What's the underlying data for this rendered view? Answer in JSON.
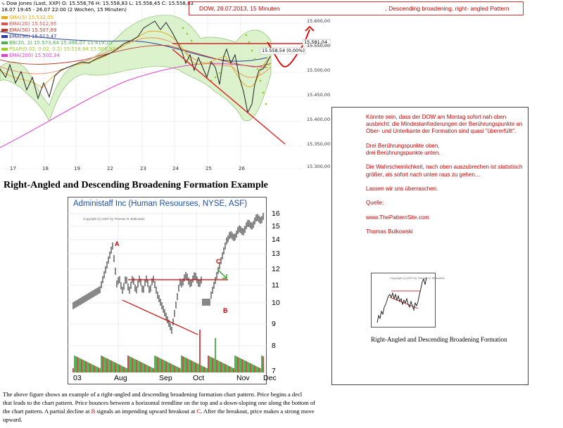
{
  "top_chart": {
    "header_line1": "Dow Jones (Last, XXP)  O: 15.556,76  H: 15.558,83  L: 15.556,45  C: 15.558,83",
    "header_line2": "18.07 19:45 - 26.07 22:00 (2 Wochen, 15 Minuten)",
    "legend": [
      {
        "label": "SMA(5)  15.532,05",
        "color": "#e6a817"
      },
      {
        "label": "EMA(20)  15.512,95",
        "color": "#d9534f"
      },
      {
        "label": "EMA(50)  15.507,69",
        "color": "#c0392b"
      },
      {
        "label": "EMA(90)  15.513,47",
        "color": "#2c3e99"
      },
      {
        "label": "BB(20, 2)  15.573,64  15.496,07  15.419,10",
        "color": "#4caf50"
      },
      {
        "label": "PSAR(0.02, 0.02, 0.2)  15.518,94  15.560,97",
        "color": "#9acd32"
      },
      {
        "label": "EMA(200)  15.502,34",
        "color": "#e040d0"
      }
    ],
    "y_ticks": [
      "15.600,00",
      "15.550,00",
      "15.500,00",
      "15.450,00",
      "15.400,00",
      "15.350,00",
      "15.300,00"
    ],
    "x_ticks": [
      "17",
      "18",
      "19",
      "22",
      "23",
      "24",
      "25",
      "26"
    ],
    "price_tag": "15.581,04",
    "change_tag": "15.558,54 (0,00%)",
    "title_date": "DOW,  28.07.2013,  15 Minuten",
    "title_pattern": ", Descending broadening, right- angled Pattern"
  },
  "section_heading": "Right-Angled and Descending Broadening Formation Example",
  "example_chart": {
    "title": "Administaff Inc (Human Resourses, NYSE, ASF)",
    "copyright": "Copyright (c) 2007 by Thomas N. Bulkowski",
    "y_ticks": [
      "16",
      "15",
      "14",
      "13",
      "12",
      "11",
      "10",
      "9",
      "8",
      "7"
    ],
    "x_ticks": [
      "03",
      "Aug",
      "Sep",
      "Oct",
      "Nov",
      "Dec"
    ],
    "labels": {
      "a": "A",
      "b": "B",
      "c": "C"
    }
  },
  "note": {
    "lines": [
      "Könnte sein, dass der DOW am Montag sofort nah oben",
      "ausbricht: die Mindestanforderungen der Berührungspunkte an",
      "Ober- und Unterkante der Formation sind quasi \"übererfüllt\".",
      "",
      "Drei Berührungspunkte oben,",
      "drei Berührungspunkte unten.",
      "",
      "Die Wahrscheinlichkeit, nach oben auszubrechen ist statistisch",
      "größer, als sofort nach unten raus zu gehen...",
      "",
      "Lassen wir uns überraschen.",
      "",
      "Quelle:",
      "",
      "www.ThePatternSite.com",
      "",
      "Thomas Bulkowski"
    ],
    "thumb_copyright": "Copyright (c) 2007 by Thomas N. Bulkowski",
    "thumb_caption": "Right-Angled and Descending Broadening Formation"
  },
  "description": {
    "line1": "The above figure shows an example of a right-angled and descending broadening formation chart pattern. Price begins a decl",
    "line2": "that leads to the chart pattern. Price bounces between a horizontal trendline on the top and a down-sloping one along the bottom of",
    "line3_a": "the chart pattern. A partial decline at ",
    "line3_b": "B",
    "line3_c": " signals an impending upward breakout at ",
    "line3_d": "C",
    "line3_e": ". After the breakout, price makes a strong move",
    "line4": "upward."
  }
}
